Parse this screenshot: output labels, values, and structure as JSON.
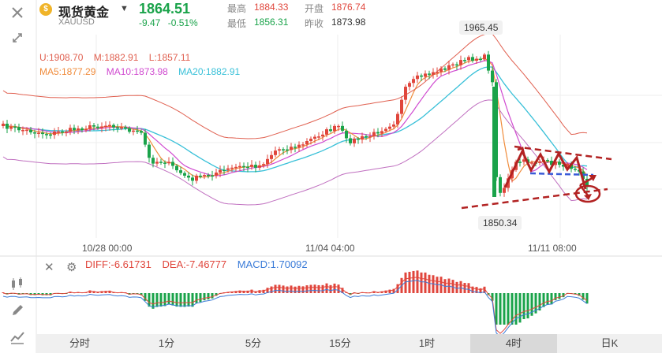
{
  "header": {
    "symbol_name": "现货黄金",
    "symbol_code": "XAUUSD",
    "price": "1864.51",
    "change": "-9.47",
    "change_pct": "-0.51%",
    "high_label": "最高",
    "high": "1884.33",
    "open_label": "开盘",
    "open": "1876.74",
    "low_label": "最低",
    "low": "1856.31",
    "prev_close_label": "昨收",
    "prev_close": "1873.98"
  },
  "colors": {
    "up": "#e0463c",
    "down": "#1aa34a",
    "ma5": "#f08c3c",
    "ma10": "#d04ad0",
    "ma20": "#38c0d8",
    "boll": "#e06050"
  },
  "legend": {
    "boll": [
      "U:1908.70",
      "M:1882.91",
      "L:1857.11"
    ],
    "ma": [
      "MA5:1877.29",
      "MA10:1873.98",
      "MA20:1882.91"
    ]
  },
  "chart": {
    "high_marker": "1965.45",
    "low_marker": "1850.34",
    "time_labels": [
      "10/28 00:00",
      "11/04 04:00",
      "11/11 08:00"
    ]
  },
  "macd": {
    "diff": "DIFF:-6.61731",
    "dea": "DEA:-7.46777",
    "macd": "MACD:1.70092"
  },
  "tabs": [
    "分时",
    "1分",
    "5分",
    "15分",
    "1时",
    "4时",
    "日K"
  ],
  "active_tab": "4时",
  "icons": [
    "close-icon",
    "expand-icon",
    "candle-icon",
    "pen-icon",
    "trend-line-icon",
    "gear-icon"
  ]
}
